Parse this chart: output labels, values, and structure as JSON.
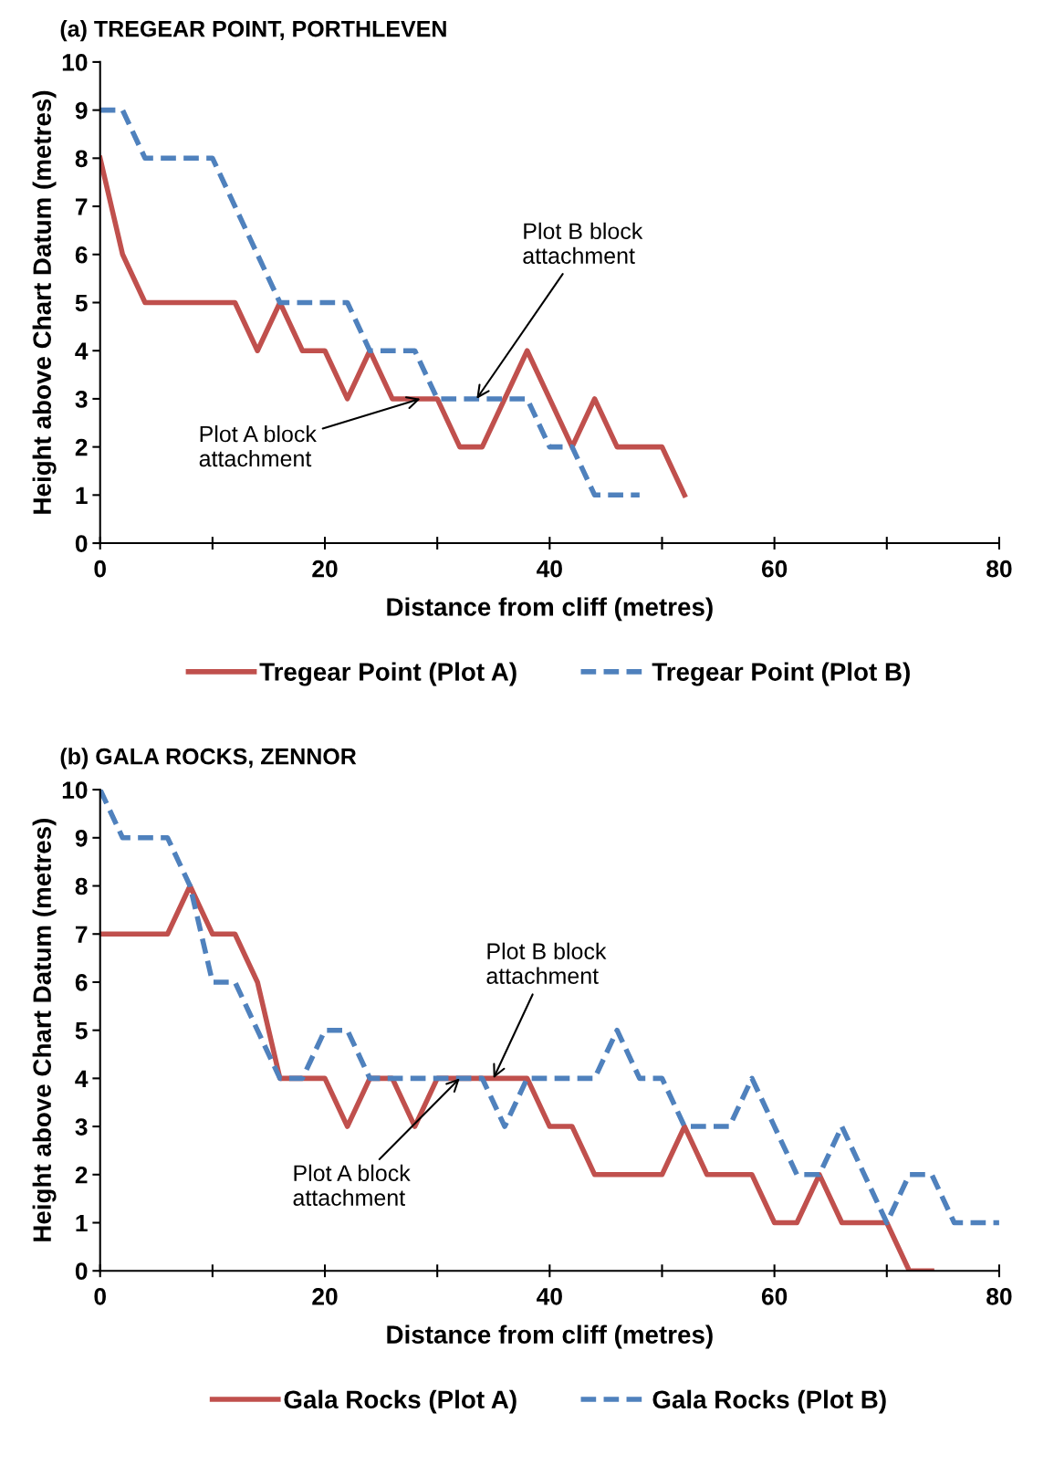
{
  "chart_data": [
    {
      "type": "line",
      "title": "(a) TREGEAR POINT, PORTHLEVEN",
      "xlabel": "Distance from cliff (metres)",
      "ylabel": "Height above Chart Datum (metres)",
      "xlim": [
        0,
        80
      ],
      "ylim": [
        0,
        10
      ],
      "xticks": [
        0,
        {
          "value": 10,
          "label": null
        },
        20,
        {
          "value": 30,
          "label": null
        },
        40,
        {
          "value": 50,
          "label": null
        },
        60,
        {
          "value": 70,
          "label": null
        },
        80
      ],
      "yticks": [
        0,
        1,
        2,
        3,
        4,
        5,
        6,
        7,
        8,
        9,
        10
      ],
      "grid": false,
      "legend": "bottom",
      "marker": "none",
      "series": [
        {
          "name": "Tregear Point (Plot A)",
          "color": "#c0504d",
          "line_style": "solid",
          "x": [
            0,
            2,
            4,
            6,
            8,
            10,
            12,
            14,
            16,
            18,
            20,
            22,
            24,
            26,
            28,
            30,
            32,
            34,
            36,
            38,
            40,
            42,
            44,
            46,
            48,
            50,
            52
          ],
          "values": [
            8,
            6,
            5,
            5,
            5,
            5,
            5,
            4,
            5,
            4,
            4,
            3,
            4,
            3,
            3,
            3,
            2,
            2,
            3,
            4,
            3,
            2,
            3,
            2,
            2,
            2,
            1
          ]
        },
        {
          "name": "Tregear Point (Plot B)",
          "color": "#4f81bd",
          "line_style": "dashed",
          "x": [
            0,
            2,
            4,
            6,
            8,
            10,
            12,
            14,
            16,
            18,
            20,
            22,
            24,
            26,
            28,
            30,
            32,
            34,
            36,
            38,
            40,
            42,
            44,
            46,
            48
          ],
          "values": [
            9,
            9,
            8,
            8,
            8,
            8,
            7,
            6,
            5,
            5,
            5,
            5,
            4,
            4,
            4,
            3,
            3,
            3,
            3,
            3,
            2,
            2,
            1,
            1,
            1
          ]
        }
      ],
      "annotations": [
        {
          "text": "Plot B block\nattachment",
          "x": 33.5,
          "y": 3
        },
        {
          "text": "Plot A block\nattachment",
          "x": 28.5,
          "y": 3
        }
      ]
    },
    {
      "type": "line",
      "title": "(b) GALA ROCKS, ZENNOR",
      "xlabel": "Distance from cliff (metres)",
      "ylabel": "Height above Chart Datum (metres)",
      "xlim": [
        0,
        80
      ],
      "ylim": [
        0,
        10
      ],
      "xticks": [
        0,
        {
          "value": 10,
          "label": null
        },
        20,
        {
          "value": 30,
          "label": null
        },
        40,
        {
          "value": 50,
          "label": null
        },
        60,
        {
          "value": 70,
          "label": null
        },
        80
      ],
      "yticks": [
        0,
        1,
        2,
        3,
        4,
        5,
        6,
        7,
        8,
        9,
        10
      ],
      "grid": false,
      "legend": "bottom",
      "marker": "none",
      "series": [
        {
          "name": "Gala Rocks (Plot A)",
          "color": "#c0504d",
          "line_style": "solid",
          "x": [
            0,
            2,
            4,
            6,
            8,
            10,
            12,
            14,
            16,
            18,
            20,
            22,
            24,
            26,
            28,
            30,
            32,
            34,
            36,
            38,
            40,
            42,
            44,
            46,
            48,
            50,
            52,
            54,
            56,
            58,
            60,
            62,
            64,
            66,
            68,
            70,
            72,
            74
          ],
          "values": [
            7,
            7,
            7,
            7,
            8,
            7,
            7,
            6,
            4,
            4,
            4,
            3,
            4,
            4,
            3,
            4,
            4,
            4,
            4,
            4,
            3,
            3,
            2,
            2,
            2,
            2,
            3,
            2,
            2,
            2,
            1,
            1,
            2,
            1,
            1,
            1,
            0,
            0
          ]
        },
        {
          "name": "Gala Rocks (Plot B)",
          "color": "#4f81bd",
          "line_style": "dashed",
          "x": [
            0,
            2,
            4,
            6,
            8,
            10,
            12,
            14,
            16,
            18,
            20,
            22,
            24,
            26,
            28,
            30,
            32,
            34,
            36,
            38,
            40,
            42,
            44,
            46,
            48,
            50,
            52,
            54,
            56,
            58,
            60,
            62,
            64,
            66,
            68,
            70,
            72,
            74,
            76,
            78,
            80
          ],
          "values": [
            10,
            9,
            9,
            9,
            8,
            6,
            6,
            5,
            4,
            4,
            5,
            5,
            4,
            4,
            4,
            4,
            4,
            4,
            3,
            4,
            4,
            4,
            4,
            5,
            4,
            4,
            3,
            3,
            3,
            4,
            3,
            2,
            2,
            3,
            2,
            1,
            2,
            2,
            1,
            1,
            1
          ]
        }
      ],
      "annotations": [
        {
          "text": "Plot B block\nattachment",
          "x": 35,
          "y": 4
        },
        {
          "text": "Plot A block\nattachment",
          "x": 32,
          "y": 4
        }
      ]
    }
  ]
}
